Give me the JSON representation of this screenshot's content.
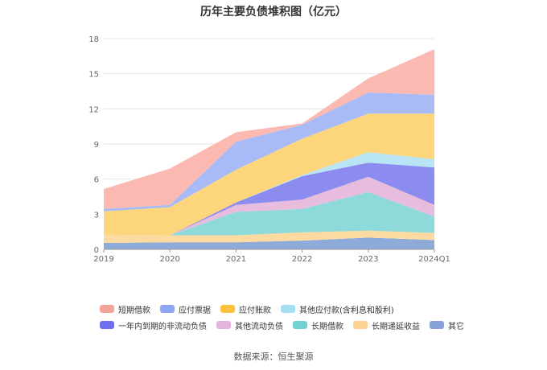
{
  "chart_data": {
    "type": "area",
    "stacked": true,
    "title": "历年主要负债堆积图（亿元）",
    "xlabel": "",
    "ylabel": "",
    "categories": [
      "2019",
      "2020",
      "2021",
      "2022",
      "2023",
      "2024Q1"
    ],
    "ylim": [
      0,
      18
    ],
    "yticks": [
      0,
      3,
      6,
      9,
      12,
      15,
      18
    ],
    "grid": true,
    "legend_position": "bottom",
    "series": [
      {
        "name": "其它",
        "color": "#8eaad8",
        "values": [
          0.55,
          0.6,
          0.6,
          0.75,
          1.0,
          0.8
        ]
      },
      {
        "name": "长期递延收益",
        "color": "#fddba0",
        "values": [
          0.7,
          0.6,
          0.6,
          0.7,
          0.6,
          0.6
        ]
      },
      {
        "name": "长期借款",
        "color": "#8ed9d9",
        "values": [
          0.0,
          0.0,
          2.0,
          2.0,
          3.3,
          1.4
        ]
      },
      {
        "name": "其他流动负债",
        "color": "#e8bcdc",
        "values": [
          0.0,
          0.0,
          0.6,
          0.8,
          1.3,
          1.0
        ]
      },
      {
        "name": "一年内到期的非流动负债",
        "color": "#8c8cf0",
        "values": [
          0.0,
          0.0,
          0.2,
          2.0,
          1.2,
          3.2
        ]
      },
      {
        "name": "其他应付款(含利息和股利)",
        "color": "#b8e4f4",
        "values": [
          0.0,
          0.0,
          0.0,
          0.1,
          0.9,
          0.7
        ]
      },
      {
        "name": "应付账款",
        "color": "#fdd57a",
        "values": [
          2.0,
          2.4,
          2.8,
          3.1,
          3.3,
          3.9
        ]
      },
      {
        "name": "应付票据",
        "color": "#a8bbf6",
        "values": [
          0.2,
          0.2,
          2.4,
          1.2,
          1.8,
          1.6
        ]
      },
      {
        "name": "短期借款",
        "color": "#fbb9b2",
        "values": [
          1.7,
          3.1,
          0.8,
          0.1,
          1.2,
          3.9
        ]
      }
    ]
  },
  "legend": [
    {
      "name": "短期借款",
      "color": "#f4a399"
    },
    {
      "name": "应付票据",
      "color": "#8fa7f3"
    },
    {
      "name": "应付账款",
      "color": "#fcc43e"
    },
    {
      "name": "其他应付款(含利息和股利)",
      "color": "#a6def4"
    },
    {
      "name": "一年内到期的非流动负债",
      "color": "#6f6ff0"
    },
    {
      "name": "其他流动负债",
      "color": "#e6b3dc"
    },
    {
      "name": "长期借款",
      "color": "#6fd3d3"
    },
    {
      "name": "长期递延收益",
      "color": "#fcd28f"
    },
    {
      "name": "其它",
      "color": "#86a2d9"
    }
  ],
  "source": "数据来源：恒生聚源"
}
